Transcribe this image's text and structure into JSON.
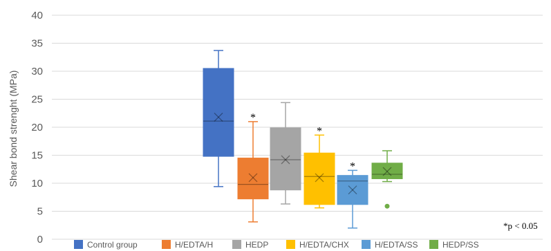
{
  "chart_data": {
    "type": "box",
    "ylabel": "Shear bond strenght (MPa)",
    "ylim": [
      0,
      40
    ],
    "yticks": [
      "0",
      "5",
      "10",
      "15",
      "20",
      "25",
      "30",
      "35",
      "40"
    ],
    "grid": true,
    "legend_position": "bottom",
    "significance_marker": "*",
    "note": "*p < 0.05",
    "series": [
      {
        "name": "Control group",
        "color": "#4472C4",
        "whisker_low": 9.4,
        "q1": 14.8,
        "median": 21.1,
        "mean": 21.8,
        "q3": 30.5,
        "whisker_high": 33.7,
        "outliers": [],
        "significant": false
      },
      {
        "name": "H/EDTA/H",
        "color": "#ED7D31",
        "whisker_low": 3.1,
        "q1": 7.2,
        "median": 9.8,
        "mean": 11.0,
        "q3": 14.5,
        "whisker_high": 21.0,
        "outliers": [],
        "significant": true
      },
      {
        "name": "HEDP",
        "color": "#A5A5A5",
        "whisker_low": 6.3,
        "q1": 8.8,
        "median": 14.2,
        "mean": 14.2,
        "q3": 19.9,
        "whisker_high": 24.4,
        "outliers": [],
        "significant": false
      },
      {
        "name": "H/EDTA/CHX",
        "color": "#FFC000",
        "whisker_low": 5.6,
        "q1": 6.2,
        "median": 11.2,
        "mean": 11.0,
        "q3": 15.4,
        "whisker_high": 18.6,
        "outliers": [],
        "significant": true
      },
      {
        "name": "H/EDTA/SS",
        "color": "#5B9BD5",
        "whisker_low": 2.0,
        "q1": 6.2,
        "median": 10.4,
        "mean": 8.8,
        "q3": 11.4,
        "whisker_high": 12.3,
        "outliers": [],
        "significant": true
      },
      {
        "name": "HEDP/SS",
        "color": "#70AD47",
        "whisker_low": 10.3,
        "q1": 10.8,
        "median": 11.6,
        "mean": 12.1,
        "q3": 13.6,
        "whisker_high": 15.8,
        "outliers": [
          5.9
        ],
        "significant": false
      }
    ]
  }
}
